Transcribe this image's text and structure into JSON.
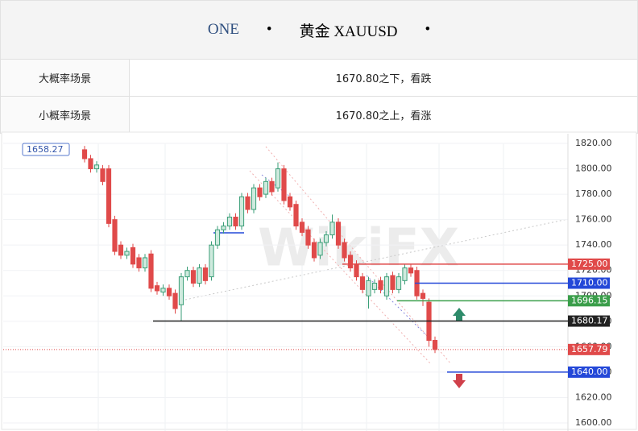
{
  "header": {
    "title": [
      "ONE",
      "•",
      "黄金 XAUUSD",
      "•"
    ]
  },
  "table": {
    "rows": [
      [
        "大概率场景",
        "1670.80之下，看跌"
      ],
      [
        "小概率场景",
        "1670.80之上，看涨"
      ]
    ]
  },
  "watermark": "WikiFX",
  "chart_data": {
    "type": "candlestick",
    "open": [
      1815,
      1808,
      1800,
      1800,
      1800,
      1760,
      1740,
      1732,
      1738,
      1730,
      1722,
      1733,
      1708,
      1703,
      1706,
      1702,
      1693,
      1715,
      1720,
      1710,
      1722,
      1715,
      1740,
      1752,
      1755,
      1762,
      1755,
      1778,
      1768,
      1785,
      1780,
      1790,
      1785,
      1800,
      1778,
      1772,
      1758,
      1752,
      1742,
      1732,
      1742,
      1748,
      1758,
      1742,
      1732,
      1725,
      1715,
      1700,
      1705,
      1712,
      1700,
      1716,
      1705,
      1712,
      1722,
      1720,
      1702,
      1695,
      1665
    ],
    "high": [
      1818,
      1811,
      1806,
      1803,
      1803,
      1763,
      1743,
      1738,
      1741,
      1733,
      1733,
      1736,
      1711,
      1709,
      1709,
      1705,
      1718,
      1723,
      1723,
      1725,
      1725,
      1743,
      1755,
      1758,
      1765,
      1765,
      1781,
      1781,
      1788,
      1788,
      1793,
      1793,
      1805,
      1803,
      1781,
      1775,
      1761,
      1755,
      1745,
      1745,
      1751,
      1764,
      1761,
      1745,
      1735,
      1728,
      1718,
      1715,
      1713,
      1715,
      1718,
      1719,
      1718,
      1725,
      1725,
      1723,
      1705,
      1698,
      1668
    ],
    "low": [
      1805,
      1797,
      1797,
      1787,
      1754,
      1732,
      1729,
      1729,
      1722,
      1719,
      1719,
      1703,
      1701,
      1700,
      1697,
      1686,
      1680,
      1712,
      1707,
      1707,
      1709,
      1712,
      1737,
      1749,
      1752,
      1752,
      1752,
      1765,
      1765,
      1775,
      1777,
      1779,
      1782,
      1772,
      1767,
      1752,
      1747,
      1737,
      1727,
      1729,
      1739,
      1745,
      1737,
      1727,
      1719,
      1712,
      1702,
      1690,
      1702,
      1702,
      1697,
      1702,
      1702,
      1709,
      1715,
      1697,
      1692,
      1660,
      1655
    ],
    "close": [
      1808,
      1800,
      1803,
      1790,
      1757,
      1735,
      1732,
      1735,
      1725,
      1722,
      1730,
      1706,
      1704,
      1706,
      1700,
      1690,
      1715,
      1720,
      1710,
      1722,
      1712,
      1740,
      1752,
      1755,
      1762,
      1755,
      1778,
      1768,
      1785,
      1778,
      1790,
      1782,
      1800,
      1775,
      1770,
      1755,
      1750,
      1740,
      1730,
      1742,
      1748,
      1758,
      1740,
      1730,
      1722,
      1715,
      1705,
      1712,
      1710,
      1705,
      1715,
      1705,
      1715,
      1722,
      1718,
      1700,
      1698,
      1665,
      1657.79
    ],
    "up_color": "#3a9e77",
    "down_color": "#e04a4a",
    "ylim": [
      1600,
      1820
    ],
    "yticks": [
      {
        "value": 1600,
        "label": "1600.00"
      },
      {
        "value": 1620,
        "label": "1620.00"
      },
      {
        "value": 1640,
        "label": "1640.00"
      },
      {
        "value": 1660,
        "label": "1660.00"
      },
      {
        "value": 1680,
        "label": "1680.00"
      },
      {
        "value": 1700,
        "label": "1700.00"
      },
      {
        "value": 1720,
        "label": "1720.00"
      },
      {
        "value": 1740,
        "label": "1740.00"
      },
      {
        "value": 1760,
        "label": "1760.00"
      },
      {
        "value": 1780,
        "label": "1780.00"
      },
      {
        "value": 1800,
        "label": "1800.00"
      },
      {
        "value": 1820,
        "label": "1820.00"
      }
    ],
    "levels": [
      {
        "value": 1725,
        "label": "1725.00",
        "color": "#e04a4a"
      },
      {
        "value": 1710,
        "label": "1710.00",
        "color": "#2448d8"
      },
      {
        "value": 1696.15,
        "label": "1696.15",
        "color": "#3a9e4a"
      },
      {
        "value": 1680.17,
        "label": "1680.17",
        "color": "#222222"
      },
      {
        "value": 1657.79,
        "label": "1657.79",
        "color": "#e04a4a"
      },
      {
        "value": 1640,
        "label": "1640.00",
        "color": "#2448d8"
      }
    ],
    "annotation": {
      "value": 1658.27,
      "label": "1658.27"
    }
  }
}
